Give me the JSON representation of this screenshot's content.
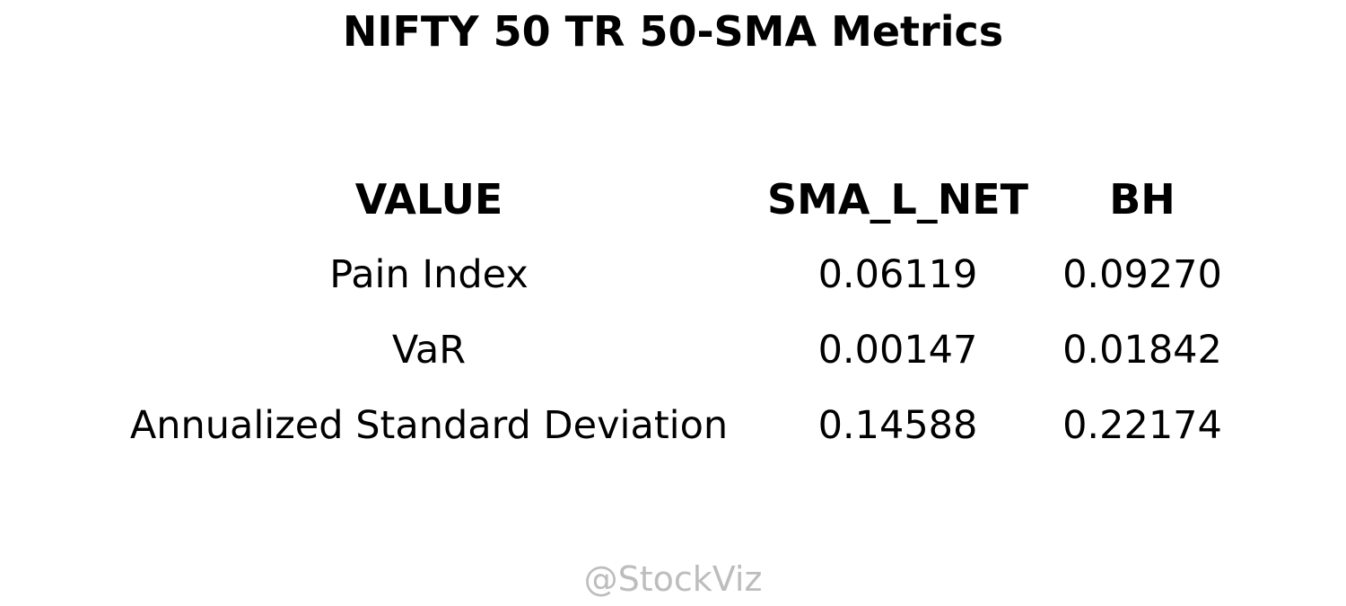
{
  "chart_data": {
    "type": "table",
    "title": "NIFTY 50 TR 50-SMA Metrics",
    "columns": [
      "VALUE",
      "SMA_L_NET",
      "BH"
    ],
    "rows": [
      {
        "label": "Pain Index",
        "values": [
          "0.06119",
          "0.09270"
        ]
      },
      {
        "label": "VaR",
        "values": [
          "0.00147",
          "0.01842"
        ]
      },
      {
        "label": "Annualized Standard Deviation",
        "values": [
          "0.14588",
          "0.22174"
        ]
      }
    ]
  },
  "watermark": "@StockViz"
}
